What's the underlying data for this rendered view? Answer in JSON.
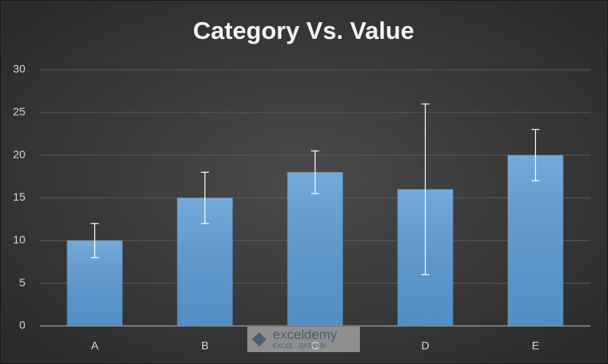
{
  "chart_data": {
    "type": "bar",
    "title": "Category Vs. Value",
    "categories": [
      "A",
      "B",
      "C",
      "D",
      "E"
    ],
    "values": [
      10,
      15,
      18,
      16,
      20
    ],
    "errors": [
      2,
      3,
      2.5,
      10,
      3
    ],
    "color": "#5b9bd5",
    "error_color": "#ffffff",
    "ylim": [
      0,
      30
    ],
    "yticks": [
      0,
      5,
      10,
      15,
      20,
      25,
      30
    ],
    "grid": true
  },
  "watermark": {
    "name": "exceldemy",
    "tagline": "EXCEL · DATA · BI"
  }
}
